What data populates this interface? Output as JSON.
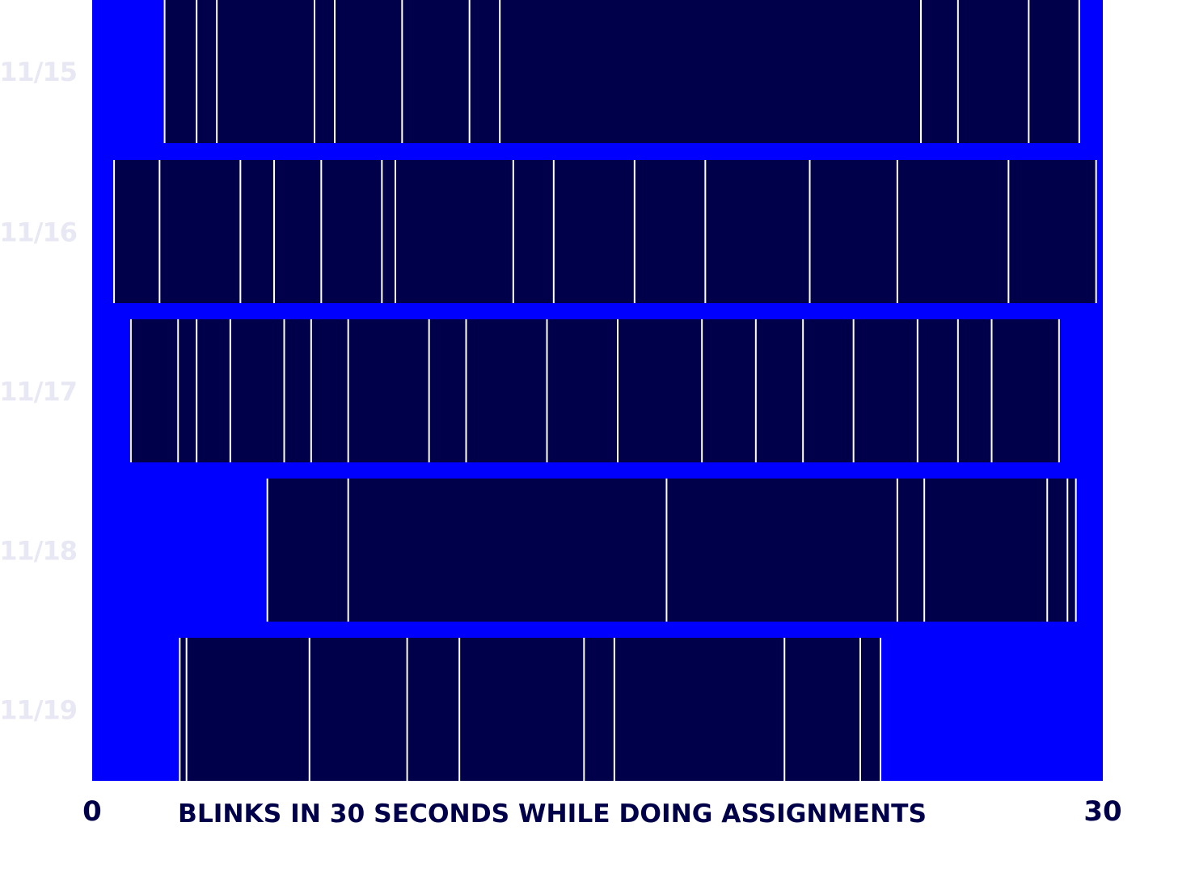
{
  "colors": {
    "plot_background": "#0000ff",
    "bar_fill": "#00004a",
    "blink_line": "#ffffff",
    "row_label": "#e8e8f4",
    "axis_text": "#00004a"
  },
  "chart_data": {
    "type": "bar",
    "title": "",
    "xlabel": "BLINKS IN 30 SECONDS WHILE DOING ASSIGNMENTS",
    "ylabel": "",
    "xlim": [
      0,
      30
    ],
    "x_tick_labels": {
      "min": "0",
      "max": "30"
    },
    "grid": false,
    "legend": "none",
    "rows": [
      {
        "label": "11/15",
        "start": 2.15,
        "end": 29.3,
        "blinks": [
          2.15,
          3.1,
          3.7,
          6.6,
          7.2,
          9.2,
          11.2,
          12.1,
          24.6,
          25.7,
          27.8,
          29.3
        ]
      },
      {
        "label": "11/16",
        "start": 0.65,
        "end": 29.8,
        "blinks": [
          0.65,
          2.0,
          4.4,
          5.4,
          6.8,
          8.6,
          9.0,
          12.5,
          13.7,
          16.1,
          18.2,
          21.3,
          23.9,
          27.2,
          29.8
        ]
      },
      {
        "label": "11/17",
        "start": 1.15,
        "end": 28.7,
        "blinks": [
          1.15,
          2.55,
          3.1,
          4.1,
          5.7,
          6.5,
          7.6,
          10.0,
          11.1,
          13.5,
          15.6,
          18.1,
          19.7,
          21.1,
          22.6,
          24.5,
          25.7,
          26.7,
          28.7
        ]
      },
      {
        "label": "11/18",
        "start": 5.2,
        "end": 29.2,
        "blinks": [
          5.2,
          7.6,
          17.05,
          23.9,
          24.7,
          28.35,
          28.95,
          29.2
        ]
      },
      {
        "label": "11/19",
        "start": 2.6,
        "end": 23.4,
        "blinks": [
          2.6,
          2.8,
          6.45,
          9.35,
          10.9,
          14.6,
          15.5,
          20.55,
          22.8,
          23.4
        ]
      }
    ]
  }
}
